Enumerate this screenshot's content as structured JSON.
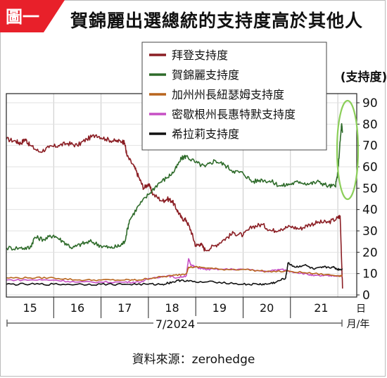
{
  "header": {
    "badge": "圖一",
    "title": "賀錦麗出選總統的支持度高於其他人"
  },
  "footer": {
    "source": "資料來源：zerohedge"
  },
  "colors": {
    "biden": "#8b1e24",
    "harris": "#2e6b2a",
    "newsom": "#b8651e",
    "whitmer": "#c64fc4",
    "hillary": "#111111",
    "badge": "#e8202a",
    "highlight": "#8ccf5a"
  },
  "chart_data": {
    "type": "line",
    "ylabel": "(支持度)",
    "ylim": [
      0,
      90
    ],
    "yticks": [
      0,
      10,
      20,
      30,
      40,
      50,
      60,
      70,
      80,
      90
    ],
    "xlim": [
      14.5,
      21.9
    ],
    "x_tick_labels": [
      "15",
      "16",
      "17",
      "18",
      "19",
      "20",
      "21"
    ],
    "x_unit_label": "日",
    "month_label": "7/2024",
    "month_unit_label": "月/年",
    "legend_position": "top-center",
    "grid": true,
    "series": [
      {
        "name": "拜登支持度",
        "color_key": "biden",
        "x": [
          14.5,
          14.7,
          14.8,
          14.9,
          15.0,
          15.2,
          15.4,
          15.6,
          15.8,
          16.0,
          16.2,
          16.4,
          16.6,
          16.8,
          16.95,
          17.0,
          17.05,
          17.2,
          17.3,
          17.4,
          17.5,
          17.6,
          17.8,
          17.9,
          18.0,
          18.1,
          18.2,
          18.3,
          18.4,
          18.5,
          18.6,
          18.7,
          18.9,
          19.1,
          19.3,
          19.5,
          19.7,
          19.9,
          20.1,
          20.3,
          20.5,
          20.7,
          20.9,
          21.1,
          21.3,
          21.5,
          21.55,
          21.6
        ],
        "values": [
          73,
          72,
          71,
          73,
          70,
          67,
          69,
          70,
          71,
          70,
          73,
          75,
          73,
          72,
          72,
          71,
          65,
          60,
          55,
          50,
          52,
          47,
          44,
          45,
          44,
          40,
          36,
          35,
          30,
          23,
          24,
          21,
          23,
          26,
          29,
          28,
          32,
          33,
          30,
          31,
          32,
          31,
          33,
          34,
          34,
          36,
          37,
          3
        ]
      },
      {
        "name": "賀錦麗支持度",
        "color_key": "harris",
        "x": [
          14.5,
          14.8,
          15.0,
          15.1,
          15.3,
          15.5,
          15.7,
          15.9,
          16.1,
          16.3,
          16.5,
          16.7,
          16.9,
          17.0,
          17.1,
          17.3,
          17.5,
          17.7,
          17.9,
          18.05,
          18.2,
          18.3,
          18.5,
          18.7,
          18.9,
          19.1,
          19.3,
          19.5,
          19.7,
          19.9,
          20.1,
          20.3,
          20.5,
          20.7,
          20.9,
          21.1,
          21.3,
          21.45,
          21.5,
          21.55,
          21.58,
          21.6
        ],
        "values": [
          22,
          22,
          22,
          27,
          26,
          28,
          25,
          22,
          24,
          25,
          23,
          22,
          23,
          25,
          35,
          42,
          47,
          52,
          55,
          58,
          64,
          65,
          62,
          60,
          63,
          61,
          58,
          57,
          53,
          54,
          53,
          51,
          52,
          53,
          52,
          53,
          51,
          51,
          57,
          72,
          80,
          76
        ]
      },
      {
        "name": "加州州長紐瑟姆支持度",
        "color_key": "newsom",
        "x": [
          14.5,
          15.0,
          15.5,
          16.0,
          16.5,
          17.0,
          17.3,
          17.6,
          18.0,
          18.3,
          18.35,
          18.6,
          19.0,
          19.5,
          20.0,
          20.5,
          21.0,
          21.5,
          21.6
        ],
        "values": [
          8,
          8,
          8,
          7,
          7,
          7,
          7,
          8,
          9,
          10,
          13,
          13,
          12,
          12,
          11,
          11,
          10,
          9,
          9
        ]
      },
      {
        "name": "密歇根州長惠特默支持度",
        "color_key": "whitmer",
        "x": [
          14.5,
          15.0,
          15.5,
          16.0,
          16.5,
          17.0,
          17.3,
          17.6,
          17.9,
          18.1,
          18.3,
          18.35,
          18.4,
          18.5,
          18.7,
          19.0,
          19.5,
          20.0,
          20.3,
          20.5,
          20.8,
          21.0,
          21.2,
          21.4,
          21.6
        ],
        "values": [
          7,
          7,
          7,
          6,
          6,
          6,
          6,
          8,
          9,
          8,
          9,
          17,
          14,
          13,
          12,
          12,
          12,
          11,
          12,
          11,
          10,
          9,
          9,
          9,
          9
        ]
      },
      {
        "name": "希拉莉支持度",
        "color_key": "hillary",
        "x": [
          14.5,
          15.0,
          15.5,
          16.0,
          16.5,
          17.0,
          17.5,
          17.8,
          18.0,
          18.2,
          18.5,
          19.0,
          19.5,
          19.8,
          20.0,
          20.2,
          20.4,
          20.45,
          20.6,
          20.8,
          21.0,
          21.2,
          21.4,
          21.5,
          21.6
        ],
        "values": [
          5,
          5,
          5,
          5,
          5,
          5,
          5,
          5,
          6,
          7,
          6,
          6,
          5,
          5,
          5,
          6,
          8,
          15,
          13,
          14,
          12,
          13,
          13,
          12,
          12
        ]
      }
    ]
  }
}
